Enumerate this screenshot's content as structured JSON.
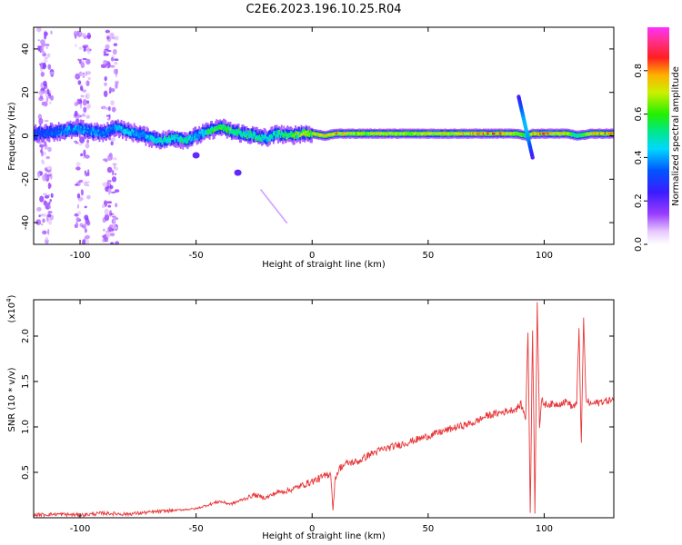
{
  "title": "C2E6.2023.196.10.25.R04",
  "chart_data": [
    {
      "type": "heatmap",
      "xlabel": "Height of straight line (km)",
      "ylabel": "Frequency (Hz)",
      "xlim": [
        -120,
        130
      ],
      "ylim": [
        -50,
        50
      ],
      "xticks": [
        -100,
        -50,
        0,
        50,
        100
      ],
      "yticks": [
        -40,
        -20,
        0,
        20,
        40
      ],
      "colorbar": {
        "label": "Normalized spectral amplitude",
        "range": [
          0,
          1
        ],
        "ticks": [
          "0.0",
          "0.2",
          "0.4",
          "0.6",
          "0.8"
        ]
      },
      "ridge": {
        "x": [
          -120,
          -110,
          -100,
          -90,
          -85,
          -80,
          -75,
          -70,
          -65,
          -60,
          -55,
          -50,
          -45,
          -40,
          -35,
          -30,
          -25,
          -20,
          -15,
          -10,
          -5,
          0,
          5,
          10,
          20,
          30,
          40,
          50,
          60,
          70,
          80,
          88,
          92,
          95,
          100,
          110,
          114,
          120,
          130
        ],
        "frequency": [
          1,
          2,
          3,
          1,
          4,
          2,
          1,
          -1,
          -2,
          -1,
          -2,
          0,
          2,
          4,
          2,
          1,
          0,
          -1,
          1,
          0,
          1,
          1,
          0,
          1,
          1,
          1,
          1,
          1,
          1,
          1,
          1,
          1,
          0,
          1,
          1,
          1,
          0,
          1,
          1
        ],
        "amplitude": [
          0.3,
          0.35,
          0.4,
          0.35,
          0.4,
          0.45,
          0.4,
          0.45,
          0.5,
          0.45,
          0.5,
          0.4,
          0.55,
          0.6,
          0.55,
          0.5,
          0.5,
          0.45,
          0.55,
          0.6,
          0.75,
          0.7,
          0.8,
          0.8,
          0.7,
          0.75,
          0.7,
          0.75,
          0.75,
          0.8,
          0.85,
          0.7,
          0.5,
          0.8,
          0.85,
          0.7,
          0.5,
          0.8,
          0.85
        ]
      },
      "features": [
        {
          "kind": "streak",
          "x": [
            89,
            95
          ],
          "frequency": [
            18,
            -10
          ]
        },
        {
          "kind": "blob",
          "x": -32,
          "frequency": -17
        },
        {
          "kind": "blob",
          "x": -50,
          "frequency": -9
        },
        {
          "kind": "streak",
          "x": [
            -22,
            -11
          ],
          "frequency": [
            -25,
            -40
          ]
        },
        {
          "kind": "column",
          "x": [
            -118,
            -112
          ],
          "frequency": [
            -50,
            50
          ]
        },
        {
          "kind": "column",
          "x": [
            -102,
            -96
          ],
          "frequency": [
            -50,
            50
          ]
        },
        {
          "kind": "column",
          "x": [
            -90,
            -84
          ],
          "frequency": [
            -50,
            50
          ]
        }
      ]
    },
    {
      "type": "line",
      "xlabel": "Height of straight line (km)",
      "ylabel": "SNR (10 * v/v)",
      "scale_note": "(x10",
      "scale_exp": "4",
      "unit_scale": 10000,
      "xlim": [
        -120,
        130
      ],
      "ylim": [
        0,
        2.4
      ],
      "xticks": [
        -100,
        -50,
        0,
        50,
        100
      ],
      "yticks": [
        0.5,
        1.0,
        1.5,
        2.0
      ],
      "color": "#e8383a",
      "series": [
        {
          "x": [
            -120,
            -110,
            -100,
            -90,
            -80,
            -70,
            -60,
            -50,
            -45,
            -40,
            -35,
            -30,
            -25,
            -20,
            -15,
            -10,
            -5,
            0,
            5,
            8,
            9,
            10,
            12,
            15,
            20,
            25,
            30,
            40,
            50,
            60,
            70,
            75,
            80,
            85,
            88,
            90,
            92,
            93,
            94,
            95,
            96,
            97,
            98,
            99,
            100,
            105,
            110,
            112,
            114,
            115,
            116,
            117,
            118,
            120,
            125,
            130
          ],
          "y": [
            0.03,
            0.04,
            0.03,
            0.05,
            0.04,
            0.06,
            0.08,
            0.1,
            0.14,
            0.18,
            0.15,
            0.2,
            0.25,
            0.22,
            0.28,
            0.3,
            0.35,
            0.4,
            0.45,
            0.5,
            0.08,
            0.45,
            0.55,
            0.6,
            0.62,
            0.7,
            0.75,
            0.82,
            0.9,
            0.98,
            1.05,
            1.12,
            1.15,
            1.18,
            1.2,
            1.25,
            1.1,
            2.05,
            0.05,
            2.1,
            0.08,
            2.4,
            1.0,
            1.3,
            1.25,
            1.25,
            1.28,
            1.22,
            1.25,
            2.1,
            0.8,
            2.2,
            1.3,
            1.25,
            1.28,
            1.3
          ]
        }
      ]
    }
  ]
}
